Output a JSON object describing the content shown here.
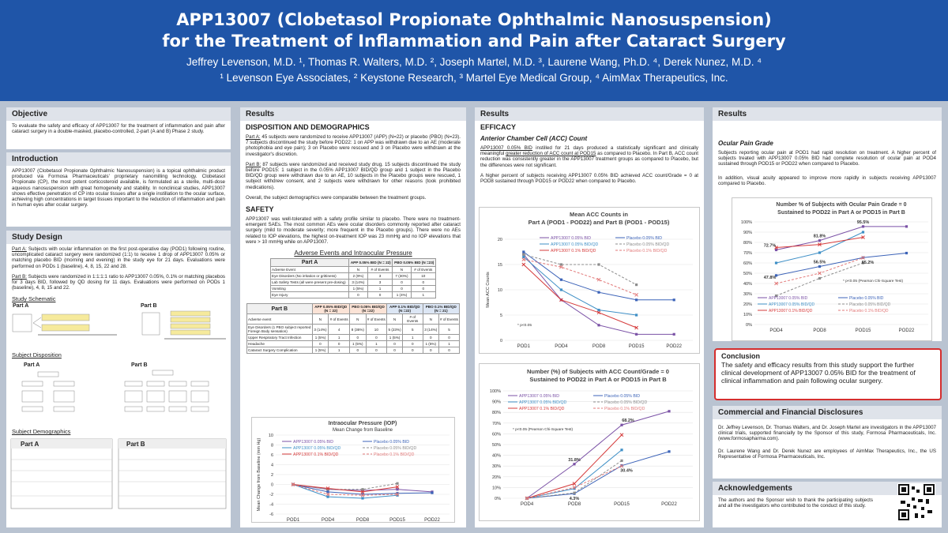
{
  "header": {
    "title_line1": "APP13007 (Clobetasol Propionate Ophthalmic Nanosuspension)",
    "title_line2": "for the Treatment of Inflammation and Pain after Cataract Surgery",
    "authors": "Jeffrey Levenson, M.D. ¹, Thomas R. Walters, M.D. ², Joseph Martel, M.D. ³, Laurene Wang, Ph.D. ⁴, Derek Nunez, M.D. ⁴",
    "affiliations": "¹ Levenson Eye Associates, ² Keystone Research, ³ Martel Eye Medical Group, ⁴ AimMax Therapeutics, Inc."
  },
  "col1": {
    "objective": {
      "heading": "Objective",
      "text": "To evaluate the safety and efficacy of APP13007 for the treatment of inflammation and pain after cataract surgery in a double-masked, placebo-controlled, 2-part (A and B) Phase 2 study."
    },
    "introduction": {
      "heading": "Introduction",
      "text": "APP13007 (Clobetasol Propionate Ophthalmic Nanosuspension) is a topical ophthalmic product produced via Formosa Pharmaceuticals' proprietary nanomilling technology. Clobetasol Propionate (CP), the most potent corticosteroid available, is formulated as a sterile, multi-dose aqueous nanosuspension with great homogeneity and stability. In nonclinical studies, APP13007 shows effective penetration of CP into ocular tissues after a single instillation to the ocular surface, achieving high concentrations in target tissues important to the reduction of inflammation and pain in human eyes after ocular surgery."
    },
    "study_design": {
      "heading": "Study Design",
      "part_a_label": "Part A:",
      "part_a_text": " Subjects with ocular inflammation on the first post-operative day (POD1) following routine, uncomplicated cataract surgery were randomized (1:1) to receive 1 drop of APP13007 0.05% or matching placebo BID (morning and evening) in the study eye for 21 days. Evaluations were performed on PODs 1 (baseline), 4, 8, 15, 22 and 28.",
      "part_b_label": "Part B:",
      "part_b_text": " Subjects were randomized in 1:1:1:1 ratio to APP13007 0.05%, 0.1% or matching placebos for 3 days BID, followed by QD dosing for 11 days. Evaluations were performed on PODs 1 (baseline), 4, 8, 15 and 22.",
      "schematic_label": "Study Schematic",
      "disposition_label": "Subject Disposition",
      "demographics_label": "Subject Demographics",
      "part_a": "Part A",
      "part_b": "Part B"
    }
  },
  "col2": {
    "heading": "Results",
    "disposition_heading": "DISPOSITION AND DEMOGRAPHICS",
    "part_a_label": "Part A:",
    "part_a_text": " 45 subjects were randomized to receive APP13007 (APP) (N=22) or placebo (PBO) (N=23). 7 subjects discontinued the study before POD22: 1 on APP was withdrawn due to an AE (moderate photophobia and eye pain); 3 on Placebo were rescued and 3 on Placebo were withdrawn at the investigator's discretion.",
    "part_b_label": "Part B:",
    "part_b_text": " 87 subjects were randomized and received study drug. 15 subjects discontinued the study before POD15: 1 subject in the 0.05% APP13007 BID/QD group and 1 subject in the Placebo BID/QD group were withdrawn due to an AE, 10 subjects in the Placebo groups were rescued, 1 subject withdrew consent, and 2 subjects were withdrawn for other reasons (took prohibited medications).",
    "overall_text": "Overall, the subject demographics were comparable between the treatment groups.",
    "safety_heading": "SAFETY",
    "safety_text": "APP13007 was well-tolerated with a safety profile similar to placebo. There were no treatment-emergent SAEs. The most common AEs were ocular disorders commonly reported after cataract surgery (mild to moderate severity; more frequent in the Placebo groups). There were no AEs related to IOP elevations, the highest on-treatment IOP was 23 mmHg and no IOP elevations that were > 10 mmHg while on APP13007.",
    "table_title": "Adverse Events and Intraocular Pressure",
    "table_a": {
      "headers": [
        "Part A",
        "APP 0.05% BID (N = 22)",
        "PBO 0.05% BID (N =23)"
      ],
      "sub": [
        "Adverse Event",
        "N",
        "# of Events",
        "N",
        "# of Events"
      ],
      "rows": [
        [
          "Eye Disorders (No irritation or grittiness)",
          "2 (9%)",
          "3",
          "7 (30%)",
          "10"
        ],
        [
          "Lab Safety Tests (all were present pre-dosing)",
          "3 (14%)",
          "3",
          "0",
          "0"
        ],
        [
          "Vomiting",
          "1 (5%)",
          "1",
          "0",
          "0"
        ],
        [
          "Eye Injury",
          "0",
          "0",
          "1 (4%)",
          "1"
        ]
      ]
    },
    "table_b": {
      "headers": [
        "Part B",
        "APP 0.05% BID/QD (N = 22)",
        "PBO 0.05% BID/QD (N =22)",
        "APP 0.1% BID/QD (N =22)",
        "PBO 0.1% BID/QD (N = 21)"
      ],
      "sub": [
        "Adverse event",
        "N",
        "# of Events",
        "N",
        "# of Events",
        "N",
        "# of Events",
        "N",
        "# of Events"
      ],
      "rows": [
        [
          "Eye Disorders (1 PBO subject reported Foreign Body sensation)",
          "3 (14%)",
          "4",
          "8 (36%)",
          "10",
          "5 (23%)",
          "5",
          "3 (14%)",
          "5"
        ],
        [
          "Upper Respiratory Tract Infection",
          "1 (5%)",
          "1",
          "0",
          "0",
          "1 (5%)",
          "1",
          "0",
          "0"
        ],
        [
          "Headache",
          "0",
          "0",
          "1 (5%)",
          "1",
          "0",
          "0",
          "1 (5%)",
          "1"
        ],
        [
          "Cataract Surgery Complication",
          "1 (5%)",
          "1",
          "0",
          "0",
          "0",
          "0",
          "0",
          "0"
        ]
      ]
    }
  },
  "col3": {
    "heading": "Results",
    "efficacy_heading": "EFFICACY",
    "acc_heading": "Anterior Chamber Cell (ACC) Count",
    "acc_p1_ul1": "APP13007 0.05% BID",
    "acc_p1_a": " instilled for 21 days produced a statistically significant and clinically meaningful ",
    "acc_p1_ul2": "greater reduction of ACC count at POD15",
    "acc_p1_b": " as compared to Placebo. In Part B, ACC count reduction was consistently greater in the APP13007 treatment groups as compared to Placebo, but the differences were not significant.",
    "acc_p2": "A higher percent of subjects receiving APP13007 0.05% BID achieved ACC count/Grade = 0 at POD8 sustained through POD15 or POD22 when compared to Placebo."
  },
  "col4": {
    "heading": "Results",
    "pain_heading": "Ocular Pain Grade",
    "pain_p1": "Subjects reporting ocular pain at POD1 had rapid resolution on treatment. A higher percent of subjects treated with APP13007 0.05% BID had complete resolution of ocular pain at POD4 sustained through POD15 or POD22 when compared to Placebo.",
    "pain_p2": "In addition, visual acuity appeared to improve more rapidly in subjects receiving APP13007 compared to Placebo.",
    "conclusion_heading": "Conclusion",
    "conclusion_text": "The safety and efficacy results from this study support the further clinical development of APP13007 0.05% BID for the treatment of clinical inflammation and pain following ocular surgery.",
    "disclosures_heading": "Commercial and Financial Disclosures",
    "disclosures_p1": "Dr. Jeffrey Levenson, Dr. Thomas Walters, and Dr. Joseph Martel are investigators in the APP13007 clinical trials, supported financially by the Sponsor of this study, Formosa Pharmaceuticals, Inc. (www.formosapharma.com).",
    "disclosures_p2": "Dr. Laurene Wang and Dr. Derek Nunez are employees of AimMax Therapeutics, Inc., the US Representative of Formosa Pharmaceuticals, Inc.",
    "ack_heading": "Acknowledgements",
    "ack_text": "The authors and the Sponsor wish to thank the participating subjects and all the investigators who contributed to the conduct of this study."
  },
  "colors": {
    "header": "#1f55a8",
    "background": "#b9c3d1",
    "app_bid": "#7b52a6",
    "pbo_bid": "#3c63b8",
    "app_bidqd": "#3e8fc6",
    "pbo_bidqd": "#8c8c8c",
    "app_01": "#d63c3c",
    "pbo_01": "#e27a7a"
  },
  "chart_data": [
    {
      "type": "line",
      "title": "Mean ACC Counts in Part A (POD1 - POD22) and Part B (POD1 - POD15)",
      "ylabel": "Mean ACC Counts",
      "ylim": [
        0,
        20
      ],
      "y_ticks": [
        0,
        5,
        10,
        15,
        20
      ],
      "categories": [
        "POD1",
        "POD4",
        "POD8",
        "POD15",
        "POD22"
      ],
      "annotation": "* p<0.05",
      "series": [
        {
          "name": "APP13007 0.05% BID",
          "values": [
            17,
            8,
            3,
            1.2,
            1.2
          ]
        },
        {
          "name": "Placebo 0.05% BID",
          "values": [
            17.5,
            12,
            9.5,
            8,
            8
          ]
        },
        {
          "name": "APP13007 0.05% BID/QD",
          "values": [
            16.5,
            10,
            6,
            5,
            null
          ]
        },
        {
          "name": "Placebo 0.05% BID/QD",
          "values": [
            17,
            15,
            15,
            11,
            null
          ]
        },
        {
          "name": "APP13007 0.1% BID/QD",
          "values": [
            15,
            8,
            5.5,
            2.5,
            null
          ]
        },
        {
          "name": "Placebo 0.1% BID/QD",
          "values": [
            16,
            14.5,
            12,
            9,
            null
          ]
        }
      ]
    },
    {
      "type": "line",
      "title": "Number (%) of Subjects with ACC Count/Grade = 0 Sustained to POD22 in Part A or POD15 in Part B",
      "ylim": [
        0,
        100
      ],
      "y_ticks": [
        "0%",
        "10%",
        "20%",
        "30%",
        "40%",
        "50%",
        "60%",
        "70%",
        "80%",
        "90%",
        "100%"
      ],
      "categories": [
        "POD4",
        "POD8",
        "POD15",
        "POD22"
      ],
      "annotation": "* p<0.05 (Pearson Chi-Square Test)",
      "series": [
        {
          "name": "APP13007 0.05% BID",
          "values": [
            0,
            31.8,
            68.2,
            81
          ]
        },
        {
          "name": "Placebo 0.05% BID",
          "values": [
            0,
            4.3,
            30.4,
            43.5
          ]
        },
        {
          "name": "APP13007 0.05% BID/QD",
          "values": [
            0,
            9,
            45,
            null
          ]
        },
        {
          "name": "Placebo 0.05% BID/QD",
          "values": [
            0,
            5,
            35,
            null
          ]
        },
        {
          "name": "APP13007 0.1% BID/QD",
          "values": [
            0,
            13.6,
            59,
            null
          ]
        },
        {
          "name": "Placebo 0.1% BID/QD",
          "values": [
            0,
            10,
            30,
            null
          ]
        }
      ],
      "labels": [
        "31.8%",
        "4.3%",
        "68.2%",
        "30.4%"
      ]
    },
    {
      "type": "line",
      "title": "Intraocular Pressure (IOP)",
      "subtitle": "Mean Change from Baseline",
      "ylabel": "Mean Change from Baseline (mm Hg)",
      "ylim": [
        -6,
        10
      ],
      "y_ticks": [
        -6,
        -4,
        -2,
        0,
        2,
        4,
        6,
        8,
        10
      ],
      "categories": [
        "POD1",
        "POD4",
        "POD8",
        "POD15",
        "POD22"
      ],
      "series": [
        {
          "name": "APP13007 0.05% BID",
          "values": [
            0,
            -1,
            -1.2,
            -1,
            -1.5
          ]
        },
        {
          "name": "Placebo 0.05% BID",
          "values": [
            0,
            -1.5,
            -2,
            -1.8,
            -1.7
          ]
        },
        {
          "name": "APP13007 0.05% BID/QD",
          "values": [
            0,
            -2.5,
            -2.8,
            -2.2,
            null
          ]
        },
        {
          "name": "Placebo 0.05% BID/QD",
          "values": [
            0,
            -1,
            -1,
            0.2,
            null
          ]
        },
        {
          "name": "APP13007 0.1% BID/QD",
          "values": [
            0,
            -0.8,
            -1.5,
            -0.5,
            null
          ]
        },
        {
          "name": "Placebo 0.1% BID/QD",
          "values": [
            0,
            -2,
            -2.2,
            -2,
            null
          ]
        }
      ]
    },
    {
      "type": "line",
      "title": "Number % of Subjects with Ocular Pain Grade = 0 Sustained to POD22 in Part A or POD15 in Part B",
      "ylim": [
        0,
        100
      ],
      "y_ticks": [
        "0%",
        "10%",
        "20%",
        "30%",
        "40%",
        "50%",
        "60%",
        "70%",
        "80%",
        "90%",
        "100%"
      ],
      "categories": [
        "POD4",
        "POD8",
        "POD15",
        "POD22"
      ],
      "annotation": "* p<0.05 (Pearson Chi-Square Test)",
      "series": [
        {
          "name": "APP13007 0.05% BID",
          "values": [
            72.7,
            81.8,
            95.5,
            95.5
          ]
        },
        {
          "name": "Placebo 0.05% BID",
          "values": [
            47.8,
            56.5,
            65.2,
            69.6
          ]
        },
        {
          "name": "APP13007 0.05% BID/QD",
          "values": [
            60,
            70,
            90,
            null
          ]
        },
        {
          "name": "Placebo 0.05% BID/QD",
          "values": [
            28,
            45,
            60,
            null
          ]
        },
        {
          "name": "APP13007 0.1% BID/QD",
          "values": [
            75,
            78,
            85,
            null
          ]
        },
        {
          "name": "Placebo 0.1% BID/QD",
          "values": [
            40,
            50,
            65,
            null
          ]
        }
      ],
      "labels": [
        "72.7%",
        "81.8%",
        "95.5%",
        "47.8%",
        "56.5%",
        "65.2%"
      ]
    }
  ]
}
